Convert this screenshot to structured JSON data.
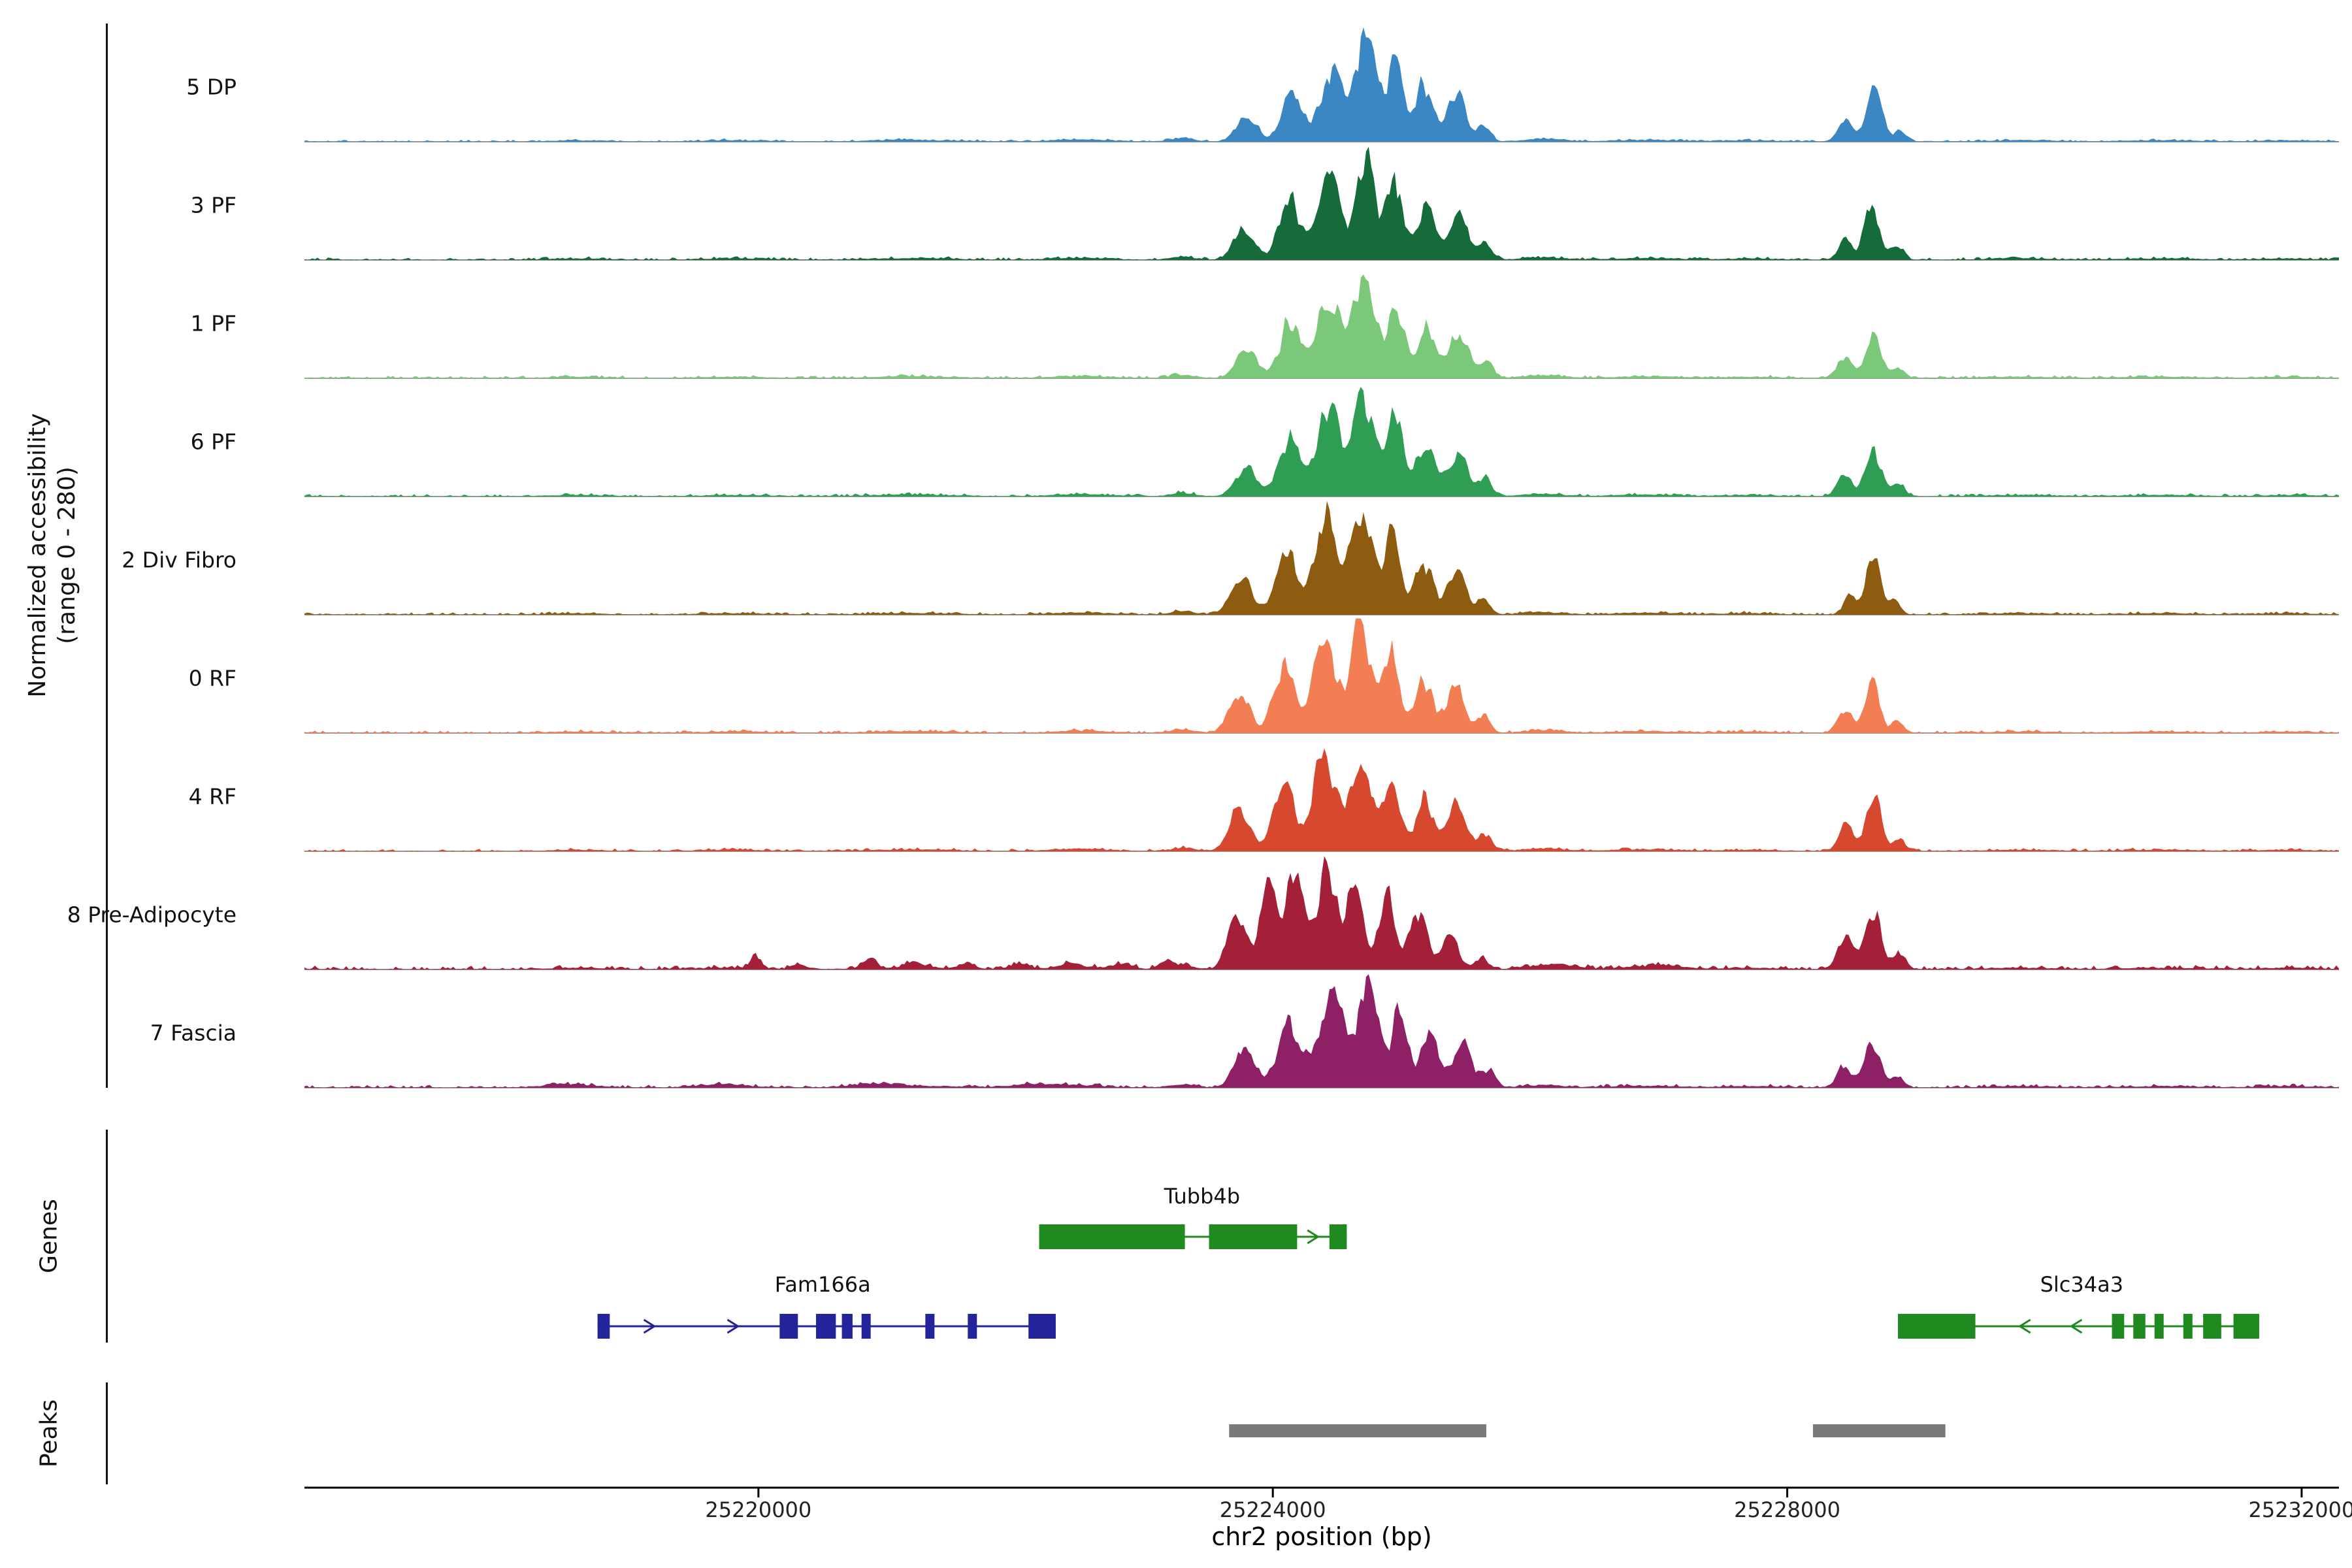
{
  "chart_data": {
    "type": "area",
    "title": "",
    "xlabel": "chr2 position (bp)",
    "y_axis_label_line1": "Normalized accessibility",
    "y_axis_label_line2": "(range 0 - 280)",
    "ylabel": "Normalized accessibility (range 0 - 280)",
    "genes_section_label": "Genes",
    "peaks_section_label": "Peaks",
    "y_range": [
      0,
      280
    ],
    "x_range_bp": [
      25216470,
      25232290
    ],
    "x_ticks": [
      {
        "pos": 25220000,
        "label": "25220000"
      },
      {
        "pos": 25224000,
        "label": "25224000"
      },
      {
        "pos": 25228000,
        "label": "25228000"
      },
      {
        "pos": 25232000,
        "label": "25232000"
      }
    ],
    "baseline_color": "#9b9b9b",
    "peak_color": "#7a7a7a",
    "ambient_bumps": [
      [
        25218600,
        200,
        3
      ],
      [
        25219800,
        250,
        3
      ],
      [
        25221200,
        300,
        4
      ],
      [
        25222500,
        200,
        5
      ],
      [
        25223300,
        90,
        8
      ],
      [
        25226100,
        150,
        6
      ],
      [
        25226900,
        250,
        4
      ],
      [
        25227700,
        200,
        3
      ],
      [
        25229800,
        250,
        3
      ],
      [
        25230900,
        300,
        3
      ],
      [
        25231900,
        200,
        3
      ]
    ],
    "tracks": [
      {
        "label": "5 DP",
        "color": "#3a87c4",
        "noise": 2,
        "bumps": [
          [
            25223800,
            80,
            55
          ],
          [
            25224150,
            80,
            125
          ],
          [
            25224450,
            80,
            185
          ],
          [
            25224720,
            80,
            262
          ],
          [
            25224950,
            60,
            205
          ],
          [
            25225180,
            70,
            140
          ],
          [
            25225430,
            70,
            108
          ],
          [
            25225640,
            50,
            40
          ],
          [
            25228450,
            55,
            58
          ],
          [
            25228680,
            60,
            122
          ],
          [
            25228880,
            45,
            32
          ]
        ]
      },
      {
        "label": "3 PF",
        "color": "#156b3a",
        "noise": 2.5,
        "bumps": [
          [
            25223780,
            80,
            75
          ],
          [
            25224130,
            80,
            150
          ],
          [
            25224430,
            80,
            225
          ],
          [
            25224720,
            80,
            258
          ],
          [
            25224950,
            60,
            195
          ],
          [
            25225190,
            70,
            138
          ],
          [
            25225440,
            70,
            112
          ],
          [
            25225650,
            50,
            45
          ],
          [
            25228450,
            50,
            48
          ],
          [
            25228660,
            60,
            128
          ],
          [
            25228860,
            45,
            38
          ]
        ]
      },
      {
        "label": "1 PF",
        "color": "#7cc87a",
        "noise": 2.5,
        "bumps": [
          [
            25223800,
            80,
            70
          ],
          [
            25224140,
            80,
            145
          ],
          [
            25224440,
            85,
            205
          ],
          [
            25224720,
            85,
            248
          ],
          [
            25224960,
            60,
            185
          ],
          [
            25225200,
            70,
            130
          ],
          [
            25225450,
            70,
            105
          ],
          [
            25225660,
            50,
            40
          ],
          [
            25228440,
            55,
            52
          ],
          [
            25228670,
            60,
            108
          ],
          [
            25228870,
            45,
            28
          ]
        ]
      },
      {
        "label": "6 PF",
        "color": "#2f9e54",
        "noise": 2.5,
        "bumps": [
          [
            25223790,
            80,
            72
          ],
          [
            25224130,
            80,
            148
          ],
          [
            25224430,
            85,
            208
          ],
          [
            25224710,
            85,
            248
          ],
          [
            25224950,
            60,
            195
          ],
          [
            25225190,
            70,
            140
          ],
          [
            25225440,
            70,
            110
          ],
          [
            25225650,
            50,
            42
          ],
          [
            25228440,
            55,
            52
          ],
          [
            25228670,
            60,
            118
          ],
          [
            25228870,
            45,
            32
          ]
        ]
      },
      {
        "label": "2 Div Fibro",
        "color": "#8e5c10",
        "noise": 2.5,
        "bumps": [
          [
            25223760,
            80,
            90
          ],
          [
            25224110,
            80,
            160
          ],
          [
            25224410,
            85,
            230
          ],
          [
            25224690,
            80,
            252
          ],
          [
            25224930,
            60,
            185
          ],
          [
            25225180,
            70,
            128
          ],
          [
            25225430,
            70,
            100
          ],
          [
            25225640,
            50,
            38
          ],
          [
            25228490,
            45,
            52
          ],
          [
            25228670,
            55,
            148
          ],
          [
            25228840,
            40,
            36
          ]
        ]
      },
      {
        "label": "0 RF",
        "color": "#f37e53",
        "noise": 2.5,
        "bumps": [
          [
            25223740,
            80,
            95
          ],
          [
            25224090,
            80,
            165
          ],
          [
            25224390,
            85,
            215
          ],
          [
            25224680,
            85,
            248
          ],
          [
            25224920,
            60,
            180
          ],
          [
            25225170,
            70,
            135
          ],
          [
            25225420,
            70,
            110
          ],
          [
            25225640,
            50,
            40
          ],
          [
            25228450,
            55,
            58
          ],
          [
            25228660,
            60,
            112
          ],
          [
            25228860,
            45,
            28
          ]
        ]
      },
      {
        "label": "4 RF",
        "color": "#d6492f",
        "noise": 2.5,
        "bumps": [
          [
            25223740,
            80,
            100
          ],
          [
            25224090,
            80,
            170
          ],
          [
            25224400,
            85,
            220
          ],
          [
            25224690,
            85,
            242
          ],
          [
            25224930,
            60,
            182
          ],
          [
            25225180,
            70,
            132
          ],
          [
            25225430,
            70,
            115
          ],
          [
            25225650,
            50,
            42
          ],
          [
            25228450,
            55,
            62
          ],
          [
            25228670,
            60,
            128
          ],
          [
            25228870,
            45,
            32
          ]
        ]
      },
      {
        "label": "8 Pre-Adipocyte",
        "color": "#a32038",
        "noise": 4,
        "bumps": [
          [
            25223720,
            70,
            125
          ],
          [
            25223960,
            70,
            185
          ],
          [
            25224180,
            70,
            235
          ],
          [
            25224420,
            70,
            258
          ],
          [
            25224640,
            60,
            230
          ],
          [
            25224880,
            60,
            175
          ],
          [
            25225130,
            70,
            148
          ],
          [
            25225380,
            60,
            85
          ],
          [
            25225620,
            50,
            30
          ],
          [
            25228450,
            55,
            85
          ],
          [
            25228670,
            60,
            148
          ],
          [
            25228880,
            45,
            38
          ],
          [
            25219980,
            35,
            36
          ],
          [
            25220320,
            60,
            10
          ],
          [
            25220860,
            45,
            28
          ],
          [
            25221220,
            60,
            12
          ],
          [
            25221620,
            60,
            11
          ],
          [
            25222030,
            70,
            12
          ],
          [
            25222430,
            70,
            10
          ],
          [
            25222830,
            70,
            13
          ],
          [
            25223180,
            60,
            17
          ],
          [
            25226250,
            120,
            8
          ],
          [
            25227050,
            150,
            6
          ]
        ]
      },
      {
        "label": "7 Fascia",
        "color": "#8e2066",
        "noise": 3,
        "bumps": [
          [
            25223780,
            80,
            88
          ],
          [
            25224130,
            85,
            165
          ],
          [
            25224450,
            90,
            228
          ],
          [
            25224740,
            85,
            252
          ],
          [
            25224990,
            60,
            185
          ],
          [
            25225230,
            70,
            135
          ],
          [
            25225480,
            70,
            108
          ],
          [
            25225680,
            50,
            40
          ],
          [
            25228440,
            55,
            52
          ],
          [
            25228660,
            60,
            106
          ],
          [
            25228860,
            45,
            28
          ],
          [
            25218500,
            150,
            6
          ],
          [
            25219700,
            120,
            6
          ],
          [
            25220900,
            150,
            8
          ],
          [
            25222150,
            150,
            8
          ]
        ]
      }
    ],
    "genes": [
      {
        "name": "Tubb4b",
        "color": "#208a20",
        "strand": "+",
        "row": 0,
        "label_pos": 25223450,
        "span": [
          25222183,
          25224575
        ],
        "exons": [
          [
            25222183,
            25223316
          ],
          [
            25223504,
            25224189
          ],
          [
            25224440,
            25224575
          ]
        ],
        "arrows": [
          25224310
        ]
      },
      {
        "name": "Fam166a",
        "color": "#23239c",
        "strand": "+",
        "row": 1,
        "label_pos": 25220500,
        "span": [
          25218749,
          25222312
        ],
        "exons": [
          [
            25218749,
            25218844
          ],
          [
            25220165,
            25220307
          ],
          [
            25220448,
            25220602
          ],
          [
            25220649,
            25220732
          ],
          [
            25220802,
            25220873
          ],
          [
            25221298,
            25221369
          ],
          [
            25221628,
            25221699
          ],
          [
            25222100,
            25222312
          ]
        ],
        "arrows": [
          25219150,
          25219800
        ]
      },
      {
        "name": "Slc34a3",
        "color": "#208a20",
        "strand": "-",
        "row": 1,
        "label_pos": 25230290,
        "span": [
          25228861,
          25231670
        ],
        "exons": [
          [
            25228861,
            25229463
          ],
          [
            25230525,
            25230620
          ],
          [
            25230691,
            25230785
          ],
          [
            25230856,
            25230927
          ],
          [
            25231080,
            25231151
          ],
          [
            25231234,
            25231375
          ],
          [
            25231470,
            25231670
          ]
        ],
        "arrows": [
          25229850,
          25230250
        ]
      }
    ],
    "peaks_bp": [
      [
        25223660,
        25225660
      ],
      [
        25228200,
        25229230
      ]
    ]
  }
}
